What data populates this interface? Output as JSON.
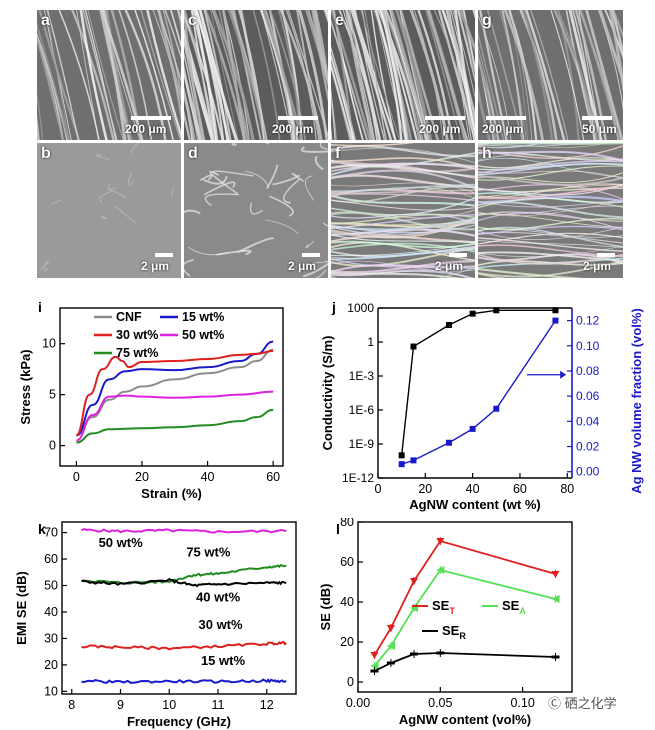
{
  "figure": {
    "sem_panels": [
      {
        "label": "a",
        "scale": "200 μm"
      },
      {
        "label": "c",
        "scale": "200 μm"
      },
      {
        "label": "e",
        "scale": "200 μm"
      },
      {
        "label": "g",
        "scale_left": "200 μm",
        "scale_right": "50 μm"
      },
      {
        "label": "b",
        "scale": "2 μm"
      },
      {
        "label": "d",
        "scale": "2 μm"
      },
      {
        "label": "f",
        "scale": "2 μm"
      },
      {
        "label": "h",
        "scale": "2 μm"
      }
    ],
    "watermark": "Ⓒ 硒之化学"
  },
  "chart_data": [
    {
      "panel": "i",
      "type": "line",
      "xlabel": "Strain (%)",
      "ylabel": "Stress (kPa)",
      "xlim": [
        -5,
        63
      ],
      "ylim": [
        -2,
        13.5
      ],
      "xticks": [
        0,
        20,
        40,
        60
      ],
      "yticks": [
        0,
        5,
        10
      ],
      "series": [
        {
          "name": "CNF",
          "color": "#8c8c8c",
          "x": [
            0,
            5,
            10,
            15,
            20,
            30,
            40,
            50,
            55,
            60
          ],
          "y": [
            1.0,
            2.8,
            4.5,
            5.3,
            5.8,
            6.5,
            7.1,
            7.7,
            8.3,
            9.4
          ]
        },
        {
          "name": "15 wt%",
          "color": "#1a1acc",
          "x": [
            0,
            5,
            10,
            15,
            20,
            30,
            40,
            50,
            55,
            60
          ],
          "y": [
            1.0,
            4.0,
            6.5,
            7.3,
            7.5,
            7.4,
            7.7,
            8.3,
            9.0,
            10.2
          ]
        },
        {
          "name": "30 wt%",
          "color": "#e02020",
          "x": [
            0,
            4,
            8,
            12,
            14,
            16,
            20,
            30,
            40,
            50,
            55,
            60
          ],
          "y": [
            1.0,
            5.0,
            7.5,
            8.7,
            8.3,
            7.7,
            8.2,
            8.3,
            8.5,
            8.9,
            9.0,
            9.3
          ]
        },
        {
          "name": "50 wt%",
          "color": "#dd22dd",
          "x": [
            0,
            5,
            10,
            15,
            20,
            30,
            40,
            50,
            60
          ],
          "y": [
            0.5,
            3.0,
            4.8,
            4.9,
            4.8,
            4.7,
            4.8,
            5.0,
            5.3
          ]
        },
        {
          "name": "75 wt%",
          "color": "#228b22",
          "x": [
            0,
            5,
            10,
            20,
            30,
            40,
            50,
            55,
            60
          ],
          "y": [
            0.3,
            1.2,
            1.6,
            1.7,
            1.8,
            2.0,
            2.4,
            2.8,
            3.5
          ]
        }
      ],
      "legend": [
        "CNF",
        "15 wt%",
        "30 wt%",
        "50 wt%",
        "75 wt%"
      ]
    },
    {
      "panel": "j",
      "type": "line",
      "xlabel": "AgNW content (wt %)",
      "ylabel_left": "Conductivity (S/m)",
      "ylabel_right": "Ag NW volume fraction (vol%)",
      "xlim": [
        0,
        82
      ],
      "xticks": [
        0,
        20,
        40,
        60,
        80
      ],
      "ylim_log_left": [
        -12,
        3
      ],
      "yticks_left": [
        "1E-12",
        "1E-9",
        "1E-6",
        "1E-3",
        "1",
        "1000"
      ],
      "ylim_right": [
        -0.005,
        0.13
      ],
      "yticks_right": [
        "0.00",
        "0.02",
        "0.04",
        "0.06",
        "0.08",
        "0.10",
        "0.12"
      ],
      "series": [
        {
          "name": "Conductivity",
          "axis": "left",
          "color": "#000000",
          "x": [
            10,
            15,
            30,
            40,
            50,
            75
          ],
          "log10y": [
            -10.0,
            -0.4,
            1.5,
            2.5,
            2.8,
            2.8
          ]
        },
        {
          "name": "Ag NW volume fraction",
          "axis": "right",
          "color": "#1a1acc",
          "x": [
            10,
            15,
            30,
            40,
            50,
            75
          ],
          "y": [
            0.006,
            0.009,
            0.023,
            0.034,
            0.05,
            0.12
          ]
        }
      ]
    },
    {
      "panel": "k",
      "type": "line",
      "xlabel": "Frequency (GHz)",
      "ylabel": "EMI SE (dB)",
      "xlim": [
        7.8,
        12.6
      ],
      "ylim": [
        9,
        74
      ],
      "xticks": [
        8,
        9,
        10,
        11,
        12
      ],
      "yticks": [
        10,
        20,
        30,
        40,
        50,
        60,
        70
      ],
      "series": [
        {
          "name": "50 wt%",
          "color": "#dd22dd",
          "x": [
            8.2,
            9.0,
            10.0,
            11.0,
            12.4
          ],
          "y": [
            71.0,
            70.5,
            70.8,
            70.3,
            70.6
          ]
        },
        {
          "name": "75 wt%",
          "color": "#228b22",
          "x": [
            8.2,
            9.0,
            10.0,
            10.5,
            11.0,
            12.0,
            12.4
          ],
          "y": [
            52.0,
            51.0,
            51.5,
            54.0,
            54.5,
            57.0,
            57.5
          ]
        },
        {
          "name": "40 wt%",
          "color": "#000000",
          "x": [
            8.2,
            9.0,
            10.0,
            10.5,
            11.0,
            12.0,
            12.4
          ],
          "y": [
            51.5,
            50.5,
            52.0,
            50.0,
            50.5,
            51.0,
            51.0
          ]
        },
        {
          "name": "30 wt%",
          "color": "#e02020",
          "x": [
            8.2,
            9.0,
            10.0,
            11.0,
            12.0,
            12.4
          ],
          "y": [
            27.0,
            26.7,
            26.3,
            27.0,
            28.0,
            28.3
          ]
        },
        {
          "name": "15 wt%",
          "color": "#1a1acc",
          "x": [
            8.2,
            9.0,
            10.0,
            11.0,
            12.0,
            12.4
          ],
          "y": [
            14.0,
            13.5,
            13.8,
            13.7,
            14.0,
            13.8
          ]
        }
      ],
      "annotations": [
        "50 wt%",
        "75 wt%",
        "40 wt%",
        "30 wt%",
        "15 wt%"
      ]
    },
    {
      "panel": "l",
      "type": "line",
      "xlabel": "AgNW content (vol%)",
      "ylabel": "SE (dB)",
      "xlim": [
        0.0,
        0.13
      ],
      "ylim": [
        -5,
        80
      ],
      "xticks": [
        "0.00",
        "0.05",
        "0.10"
      ],
      "yticks": [
        0,
        20,
        40,
        60,
        80
      ],
      "series": [
        {
          "name": "SE_T",
          "label_main": "SE",
          "label_sub": "T",
          "color": "#e02020",
          "marker": "triangle-down",
          "x": [
            0.01,
            0.02,
            0.034,
            0.05,
            0.12
          ],
          "y": [
            13.5,
            27.0,
            50.5,
            70.5,
            54.0
          ]
        },
        {
          "name": "SE_A",
          "label_main": "SE",
          "label_sub": "A",
          "color": "#55e055",
          "marker": "triangle-left",
          "x": [
            0.01,
            0.02,
            0.034,
            0.05,
            0.12
          ],
          "y": [
            8.0,
            18.0,
            37.0,
            56.0,
            41.5
          ]
        },
        {
          "name": "SE_R",
          "label_main": "SE",
          "label_sub": "R",
          "color": "#000000",
          "marker": "dash",
          "x": [
            0.01,
            0.02,
            0.034,
            0.05,
            0.12
          ],
          "y": [
            5.5,
            9.5,
            14.0,
            14.5,
            12.5
          ]
        }
      ]
    }
  ]
}
